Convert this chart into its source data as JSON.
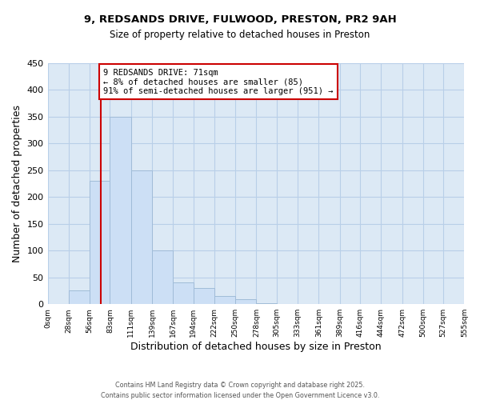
{
  "title1": "9, REDSANDS DRIVE, FULWOOD, PRESTON, PR2 9AH",
  "title2": "Size of property relative to detached houses in Preston",
  "xlabel": "Distribution of detached houses by size in Preston",
  "ylabel": "Number of detached properties",
  "bar_color": "#ccdff5",
  "bar_edge_color": "#a0bcd8",
  "background_color": "#ffffff",
  "plot_bg_color": "#dce9f5",
  "grid_color": "#b8cfe8",
  "bin_edges": [
    0,
    28,
    56,
    83,
    111,
    139,
    167,
    194,
    222,
    250,
    278,
    305,
    333,
    361,
    389,
    416,
    444,
    472,
    500,
    527,
    555
  ],
  "counts": [
    0,
    25,
    230,
    350,
    250,
    100,
    40,
    30,
    15,
    10,
    2,
    0,
    0,
    0,
    0,
    0,
    0,
    0,
    0,
    0
  ],
  "ylim": [
    0,
    450
  ],
  "yticks": [
    0,
    50,
    100,
    150,
    200,
    250,
    300,
    350,
    400,
    450
  ],
  "property_line_x": 71,
  "annotation_line1": "9 REDSANDS DRIVE: 71sqm",
  "annotation_line2": "← 8% of detached houses are smaller (85)",
  "annotation_line3": "91% of semi-detached houses are larger (951) →",
  "annotation_box_color": "#ffffff",
  "annotation_box_edge_color": "#cc0000",
  "property_line_color": "#cc0000",
  "footnote1": "Contains HM Land Registry data © Crown copyright and database right 2025.",
  "footnote2": "Contains public sector information licensed under the Open Government Licence v3.0."
}
